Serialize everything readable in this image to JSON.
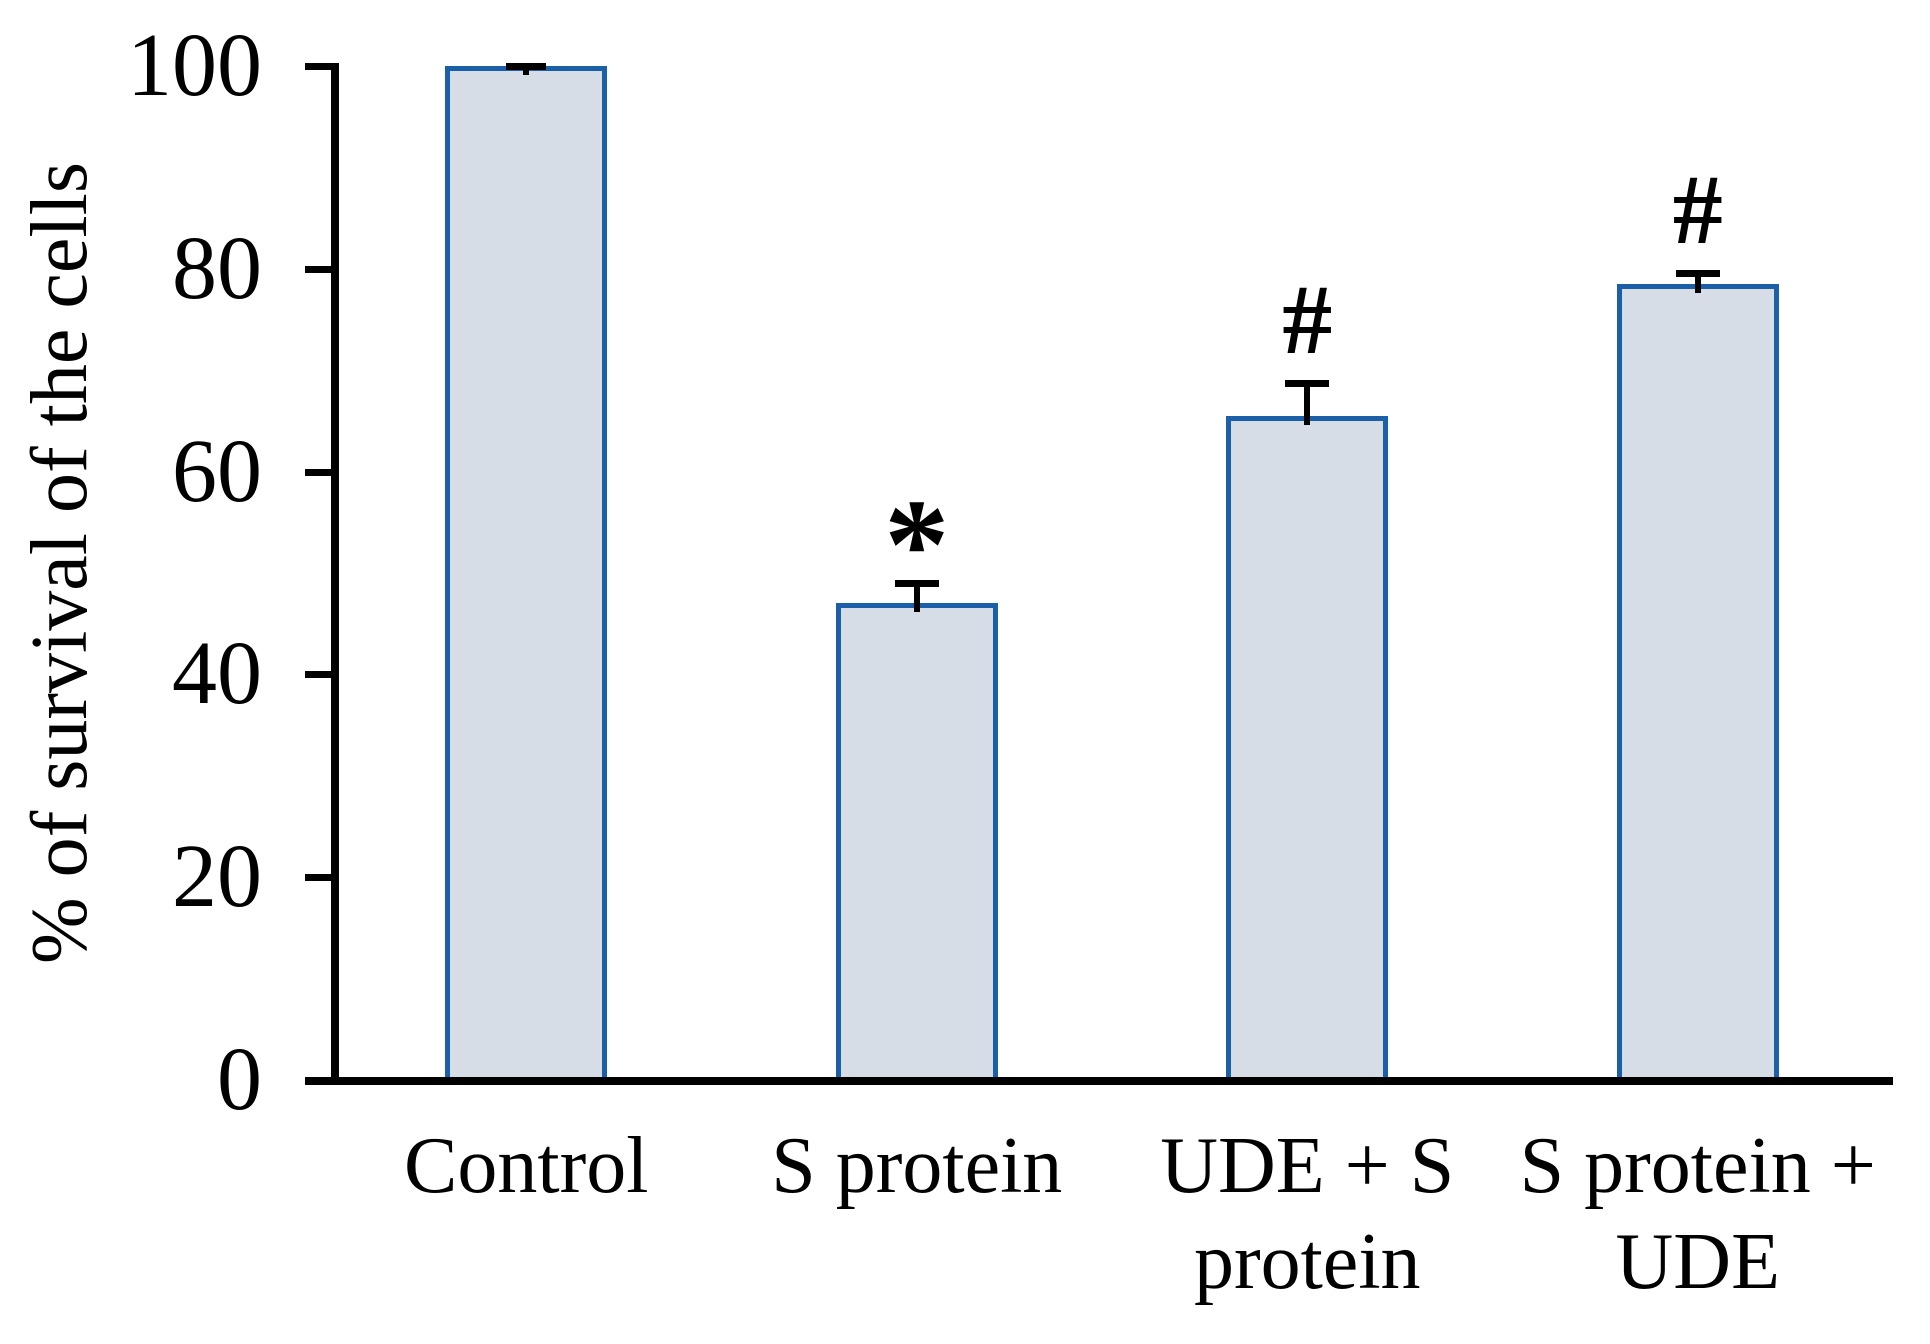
{
  "figure": {
    "background": "#ffffff"
  },
  "chart_data": {
    "type": "bar",
    "title": "",
    "xlabel": "",
    "ylabel": "% of survival of the cells",
    "ylim": [
      0,
      100
    ],
    "ytick_step": 20,
    "ytick_labels": [
      "100",
      "80",
      "60",
      "40",
      "20",
      "0"
    ],
    "grid": false,
    "legend": false,
    "categories": [
      "Control",
      "S protein",
      "UDE + S\nprotein",
      "S protein +\nUDE"
    ],
    "values": [
      100,
      47,
      65.5,
      78.5
    ],
    "errors": [
      0.3,
      2.3,
      3.5,
      1.4
    ],
    "significance_markers": [
      "",
      "*",
      "#",
      "#"
    ],
    "colors": {
      "bar_fill": "#d7dde6",
      "bar_border": "#1b5fa8",
      "axis": "#000000",
      "text": "#000000"
    }
  }
}
